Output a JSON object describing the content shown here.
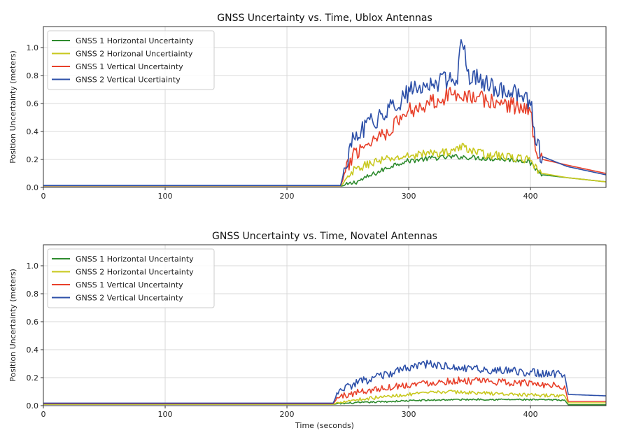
{
  "chart_data": [
    {
      "type": "line",
      "title": "GNSS Uncertainty vs. Time, Ublox Antennas",
      "xlabel": "",
      "ylabel": "Position Uncertainty (meters)",
      "xlim": [
        0,
        462
      ],
      "ylim": [
        0,
        1.15
      ],
      "xticks": [
        0,
        100,
        200,
        300,
        400
      ],
      "yticks": [
        0.0,
        0.2,
        0.4,
        0.6,
        0.8,
        1.0
      ],
      "xtick_labels": [
        "0",
        "100",
        "200",
        "300",
        "400"
      ],
      "ytick_labels": [
        "0.0",
        "0.2",
        "0.4",
        "0.6",
        "0.8",
        "1.0"
      ],
      "grid": true,
      "legend_position": "top-left",
      "series": [
        {
          "name": "GNSS 1 Horizontal Uncertainty",
          "color": "#2e8b2e",
          "keypoints": [
            [
              0,
              0.01
            ],
            [
              245,
              0.01
            ],
            [
              250,
              0.02
            ],
            [
              260,
              0.05
            ],
            [
              270,
              0.09
            ],
            [
              280,
              0.13
            ],
            [
              290,
              0.17
            ],
            [
              300,
              0.19
            ],
            [
              320,
              0.21
            ],
            [
              340,
              0.22
            ],
            [
              360,
              0.21
            ],
            [
              380,
              0.2
            ],
            [
              398,
              0.19
            ],
            [
              402,
              0.15
            ],
            [
              410,
              0.09
            ],
            [
              430,
              0.07
            ],
            [
              462,
              0.04
            ]
          ],
          "noise": 0.018
        },
        {
          "name": "GNSS 2 Horizonal Uncertiainty",
          "color": "#c8c81e",
          "keypoints": [
            [
              0,
              0.012
            ],
            [
              244,
              0.012
            ],
            [
              248,
              0.04
            ],
            [
              255,
              0.12
            ],
            [
              270,
              0.18
            ],
            [
              290,
              0.21
            ],
            [
              310,
              0.24
            ],
            [
              330,
              0.25
            ],
            [
              345,
              0.29
            ],
            [
              360,
              0.24
            ],
            [
              380,
              0.22
            ],
            [
              398,
              0.2
            ],
            [
              402,
              0.15
            ],
            [
              410,
              0.1
            ],
            [
              430,
              0.07
            ],
            [
              462,
              0.04
            ]
          ],
          "noise": 0.03
        },
        {
          "name": "GNSS 1 Vertical Uncertainty",
          "color": "#e8402a",
          "keypoints": [
            [
              0,
              0.012
            ],
            [
              244,
              0.012
            ],
            [
              248,
              0.1
            ],
            [
              255,
              0.25
            ],
            [
              270,
              0.34
            ],
            [
              285,
              0.42
            ],
            [
              300,
              0.55
            ],
            [
              320,
              0.62
            ],
            [
              340,
              0.68
            ],
            [
              355,
              0.64
            ],
            [
              375,
              0.6
            ],
            [
              390,
              0.58
            ],
            [
              400,
              0.54
            ],
            [
              404,
              0.3
            ],
            [
              410,
              0.2
            ],
            [
              430,
              0.16
            ],
            [
              462,
              0.1
            ]
          ],
          "noise": 0.06
        },
        {
          "name": "GNSS 2 Vertical Ucertiainty",
          "color": "#2c4fa8",
          "keypoints": [
            [
              0,
              0.014
            ],
            [
              244,
              0.014
            ],
            [
              248,
              0.15
            ],
            [
              255,
              0.35
            ],
            [
              270,
              0.47
            ],
            [
              285,
              0.56
            ],
            [
              300,
              0.68
            ],
            [
              320,
              0.74
            ],
            [
              340,
              0.8
            ],
            [
              343,
              1.09
            ],
            [
              350,
              0.8
            ],
            [
              370,
              0.72
            ],
            [
              390,
              0.66
            ],
            [
              400,
              0.62
            ],
            [
              404,
              0.32
            ],
            [
              410,
              0.22
            ],
            [
              430,
              0.15
            ],
            [
              462,
              0.09
            ]
          ],
          "noise": 0.07
        }
      ]
    },
    {
      "type": "line",
      "title": "GNSS Uncertainty vs. Time, Novatel Antennas",
      "xlabel": "Time (seconds)",
      "ylabel": "Position Uncertainty (meters)",
      "xlim": [
        0,
        462
      ],
      "ylim": [
        0,
        1.15
      ],
      "xticks": [
        0,
        100,
        200,
        300,
        400
      ],
      "yticks": [
        0.0,
        0.2,
        0.4,
        0.6,
        0.8,
        1.0
      ],
      "xtick_labels": [
        "0",
        "100",
        "200",
        "300",
        "400"
      ],
      "ytick_labels": [
        "0.0",
        "0.2",
        "0.4",
        "0.6",
        "0.8",
        "1.0"
      ],
      "grid": true,
      "legend_position": "top-left",
      "series": [
        {
          "name": "GNSS 1 Horizontal Uncertainty",
          "color": "#2e8b2e",
          "keypoints": [
            [
              0,
              0.01
            ],
            [
              238,
              0.01
            ],
            [
              245,
              0.015
            ],
            [
              270,
              0.025
            ],
            [
              300,
              0.035
            ],
            [
              330,
              0.042
            ],
            [
              360,
              0.045
            ],
            [
              400,
              0.042
            ],
            [
              428,
              0.04
            ],
            [
              431,
              0.006
            ],
            [
              462,
              0.006
            ]
          ],
          "noise": 0.006
        },
        {
          "name": "GNSS 2 Horizontal Uncertainty",
          "color": "#c8c81e",
          "keypoints": [
            [
              0,
              0.01
            ],
            [
              238,
              0.01
            ],
            [
              245,
              0.03
            ],
            [
              270,
              0.055
            ],
            [
              300,
              0.08
            ],
            [
              330,
              0.1
            ],
            [
              360,
              0.09
            ],
            [
              400,
              0.075
            ],
            [
              428,
              0.07
            ],
            [
              431,
              0.02
            ],
            [
              462,
              0.02
            ]
          ],
          "noise": 0.012
        },
        {
          "name": "GNSS 1 Vertical Uncertainty",
          "color": "#e8402a",
          "keypoints": [
            [
              0,
              0.014
            ],
            [
              238,
              0.014
            ],
            [
              242,
              0.06
            ],
            [
              260,
              0.1
            ],
            [
              290,
              0.14
            ],
            [
              310,
              0.16
            ],
            [
              340,
              0.18
            ],
            [
              370,
              0.17
            ],
            [
              400,
              0.16
            ],
            [
              428,
              0.14
            ],
            [
              431,
              0.03
            ],
            [
              462,
              0.03
            ]
          ],
          "noise": 0.025
        },
        {
          "name": "GNSS 2 Vertical Uncertainty",
          "color": "#2c4fa8",
          "keypoints": [
            [
              0,
              0.018
            ],
            [
              238,
              0.018
            ],
            [
              242,
              0.1
            ],
            [
              260,
              0.17
            ],
            [
              290,
              0.24
            ],
            [
              310,
              0.3
            ],
            [
              340,
              0.27
            ],
            [
              370,
              0.25
            ],
            [
              400,
              0.24
            ],
            [
              428,
              0.22
            ],
            [
              431,
              0.08
            ],
            [
              462,
              0.07
            ]
          ],
          "noise": 0.03
        }
      ]
    }
  ]
}
